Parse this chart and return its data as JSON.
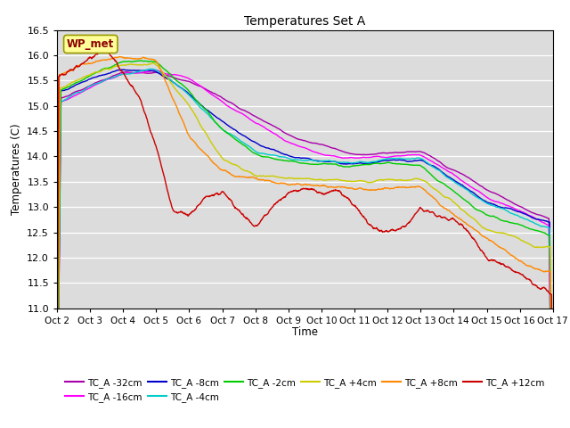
{
  "title": "Temperatures Set A",
  "xlabel": "Time",
  "ylabel": "Temperatures (C)",
  "ylim": [
    11.0,
    16.5
  ],
  "xlim": [
    0,
    15
  ],
  "xtick_labels": [
    "Oct 2",
    "Oct 3",
    "Oct 4",
    "Oct 5",
    "Oct 6",
    "Oct 7",
    "Oct 8",
    "Oct 9",
    "Oct 10",
    "Oct 11",
    "Oct 12",
    "Oct 13",
    "Oct 14",
    "Oct 15",
    "Oct 16",
    "Oct 17"
  ],
  "ytick_values": [
    11.0,
    11.5,
    12.0,
    12.5,
    13.0,
    13.5,
    14.0,
    14.5,
    15.0,
    15.5,
    16.0,
    16.5
  ],
  "wp_met_label": "WP_met",
  "wp_met_color": "#8B0000",
  "wp_met_bg": "#FFFF99",
  "background_color": "#DCDCDC",
  "series": [
    {
      "label": "TC_A -32cm",
      "color": "#AA00AA"
    },
    {
      "label": "TC_A -16cm",
      "color": "#FF00FF"
    },
    {
      "label": "TC_A -8cm",
      "color": "#0000CC"
    },
    {
      "label": "TC_A -4cm",
      "color": "#00CCCC"
    },
    {
      "label": "TC_A -2cm",
      "color": "#00CC00"
    },
    {
      "label": "TC_A +4cm",
      "color": "#CCCC00"
    },
    {
      "label": "TC_A +8cm",
      "color": "#FF8800"
    },
    {
      "label": "TC_A +12cm",
      "color": "#CC0000"
    }
  ]
}
